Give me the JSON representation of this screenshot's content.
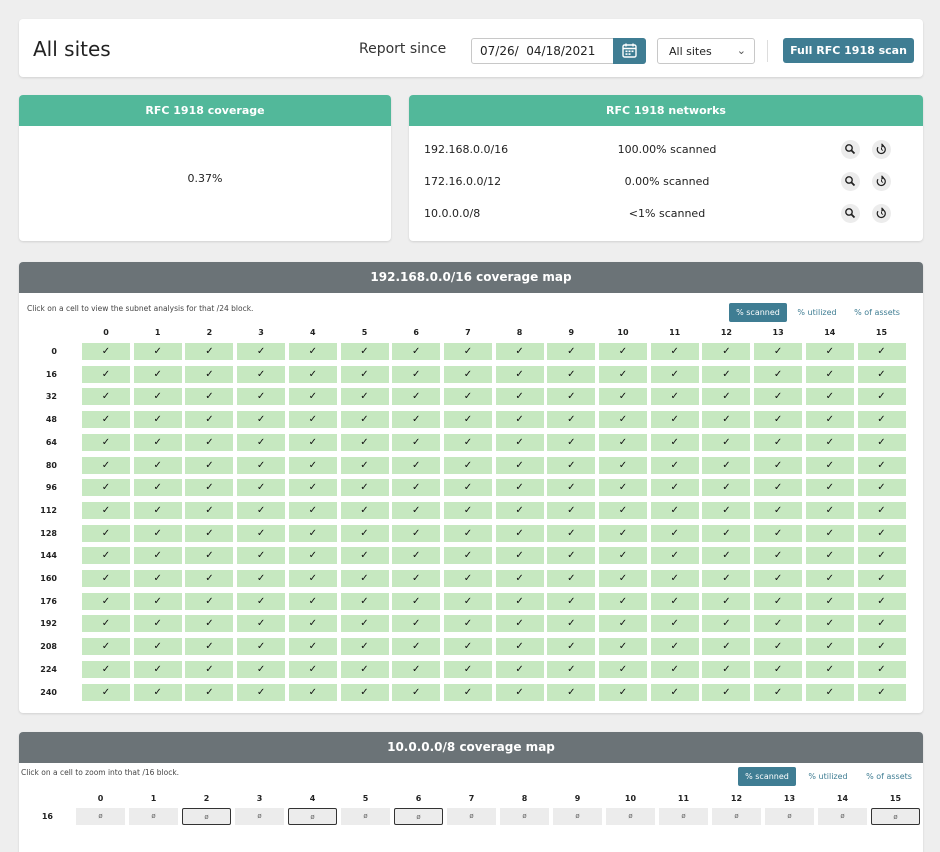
{
  "header": {
    "title": "All sites",
    "report_label": "Report since",
    "date_value": "07/26/  04/18/2021",
    "site_select": "All sites",
    "scan_button": "Full RFC 1918 scan"
  },
  "coverage": {
    "title": "RFC 1918 coverage",
    "value": "0.37%"
  },
  "networks": {
    "title": "RFC 1918 networks",
    "rows": [
      {
        "address": "192.168.0.0/16",
        "scanned": "100.00% scanned"
      },
      {
        "address": "172.16.0.0/12",
        "scanned": "0.00% scanned"
      },
      {
        "address": "10.0.0.0/8",
        "scanned": "<1% scanned"
      }
    ]
  },
  "map16": {
    "title": "192.168.0.0/16 coverage map",
    "hint": "Click on a cell to view the subnet analysis for that /24 block.",
    "toggles": [
      "% scanned",
      "% utilized",
      "% of assets"
    ],
    "columns": [
      "0",
      "1",
      "2",
      "3",
      "4",
      "5",
      "6",
      "7",
      "8",
      "9",
      "10",
      "11",
      "12",
      "13",
      "14",
      "15"
    ],
    "rows": [
      "0",
      "16",
      "32",
      "48",
      "64",
      "80",
      "96",
      "112",
      "128",
      "144",
      "160",
      "176",
      "192",
      "208",
      "224",
      "240"
    ],
    "cell_mark": "✓"
  },
  "map8": {
    "title": "10.0.0.0/8 coverage map",
    "hint": "Click on a cell to zoom into that /16 block.",
    "toggles": [
      "% scanned",
      "% utilized",
      "% of assets"
    ],
    "columns": [
      "0",
      "1",
      "2",
      "3",
      "4",
      "5",
      "6",
      "7",
      "8",
      "9",
      "10",
      "11",
      "12",
      "13",
      "14",
      "15"
    ],
    "rows": [
      "16"
    ],
    "cell_mark": "ø",
    "selected_columns": [
      2,
      4,
      6,
      15
    ]
  },
  "colors": {
    "accent": "#3f7d93",
    "teal_header": "#52b89a",
    "gray_header": "#6b7377",
    "cell_scanned": "#c6e8c0",
    "cell_empty": "#ececec"
  },
  "icons": {
    "calendar": "calendar-icon",
    "select_chevron": "chevron-down-icon",
    "search": "magnifier-icon",
    "rescan": "refresh-icon"
  }
}
